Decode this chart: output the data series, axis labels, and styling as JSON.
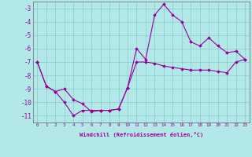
{
  "xlabel": "Windchill (Refroidissement éolien,°C)",
  "hours": [
    0,
    1,
    2,
    3,
    4,
    5,
    6,
    7,
    8,
    9,
    10,
    11,
    12,
    13,
    14,
    15,
    16,
    17,
    18,
    19,
    20,
    21,
    22,
    23
  ],
  "line1": [
    -7,
    -8.8,
    -9.2,
    -10.0,
    -11.0,
    -10.6,
    -10.6,
    -10.6,
    -10.6,
    -10.5,
    -8.9,
    -6.0,
    -6.8,
    -3.5,
    -2.7,
    -3.5,
    -4.0,
    -5.5,
    -5.8,
    -5.2,
    -5.8,
    -6.3,
    -6.2,
    -6.8
  ],
  "line2": [
    -7,
    -8.8,
    -9.2,
    -9.0,
    -9.8,
    -10.1,
    -10.7,
    -10.6,
    -10.6,
    -10.5,
    -8.9,
    -7.0,
    -7.0,
    -7.1,
    -7.3,
    -7.4,
    -7.5,
    -7.6,
    -7.6,
    -7.6,
    -7.7,
    -7.8,
    -7.0,
    -6.8
  ],
  "line_color": "#990099",
  "bg_color": "#b3e8e8",
  "grid_color": "#88cccc",
  "ylim": [
    -11.5,
    -2.5
  ],
  "yticks": [
    -11,
    -10,
    -9,
    -8,
    -7,
    -6,
    -5,
    -4,
    -3
  ],
  "xlim": [
    -0.5,
    23.5
  ],
  "marker": "D",
  "markersize": 1.8,
  "linewidth": 0.8
}
